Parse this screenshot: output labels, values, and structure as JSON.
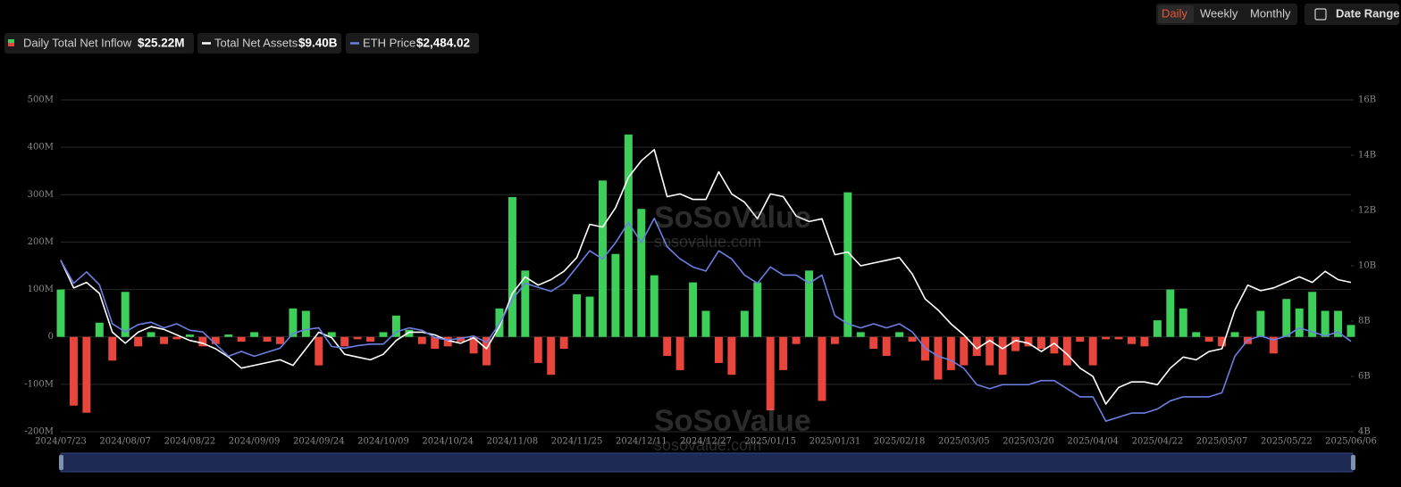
{
  "buttons": {
    "daily": "Daily",
    "weekly": "Weekly",
    "monthly": "Monthly",
    "date_range": "Date Range"
  },
  "watermark": {
    "brand": "SoSoValue",
    "site": "sosovalue.com"
  },
  "chart_data": {
    "type": "combo",
    "categories": [
      "2024/07/23",
      null,
      null,
      null,
      null,
      "2024/08/07",
      null,
      null,
      null,
      null,
      "2024/08/22",
      null,
      null,
      null,
      null,
      "2024/09/09",
      null,
      null,
      null,
      null,
      "2024/09/24",
      null,
      null,
      null,
      null,
      "2024/10/09",
      null,
      null,
      null,
      null,
      "2024/10/24",
      null,
      null,
      null,
      null,
      "2024/11/08",
      null,
      null,
      null,
      null,
      "2024/11/25",
      null,
      null,
      null,
      null,
      "2024/12/11",
      null,
      null,
      null,
      null,
      "2024/12/27",
      null,
      null,
      null,
      null,
      "2025/01/15",
      null,
      null,
      null,
      null,
      "2025/01/31",
      null,
      null,
      null,
      null,
      "2025/02/18",
      null,
      null,
      null,
      null,
      "2025/03/05",
      null,
      null,
      null,
      null,
      "2025/03/20",
      null,
      null,
      null,
      null,
      "2025/04/04",
      null,
      null,
      null,
      null,
      "2025/04/22",
      null,
      null,
      null,
      null,
      "2025/05/07",
      null,
      null,
      null,
      null,
      "2025/05/22",
      null,
      null,
      null,
      null,
      "2025/06/06"
    ],
    "series": [
      {
        "name": "Daily Total Net Inflow",
        "latest": "$25.22M",
        "type": "bar",
        "axis": "y",
        "color": "#3ecf5a",
        "negative_color": "#e8453c",
        "values": [
          100,
          -145,
          -160,
          30,
          -50,
          95,
          -20,
          10,
          -15,
          -5,
          5,
          -20,
          -15,
          5,
          -10,
          10,
          -10,
          -15,
          60,
          55,
          -60,
          10,
          -20,
          -5,
          -10,
          10,
          45,
          15,
          -15,
          -25,
          -20,
          -10,
          -35,
          -60,
          60,
          295,
          140,
          -55,
          -80,
          -25,
          90,
          85,
          330,
          175,
          427,
          270,
          130,
          -40,
          -70,
          115,
          55,
          -55,
          -80,
          55,
          115,
          -155,
          -70,
          -15,
          140,
          -135,
          -15,
          305,
          10,
          -25,
          -40,
          10,
          -10,
          -50,
          -90,
          -70,
          -60,
          -40,
          -60,
          -80,
          -30,
          -20,
          -25,
          -35,
          -60,
          -10,
          -60,
          -5,
          -5,
          -15,
          -20,
          35,
          100,
          60,
          10,
          -10,
          -20,
          10,
          -15,
          55,
          -35,
          80,
          60,
          95,
          55,
          55,
          25.22
        ]
      },
      {
        "name": "Total Net Assets",
        "latest": "$9.40B",
        "type": "line",
        "axis": "y2",
        "color": "#ffffff",
        "values": [
          10.2,
          9.2,
          9.4,
          9.0,
          7.6,
          7.2,
          7.6,
          7.8,
          7.7,
          7.5,
          7.3,
          7.2,
          7.0,
          6.7,
          6.3,
          6.4,
          6.5,
          6.6,
          6.4,
          7.0,
          7.6,
          7.4,
          6.8,
          6.7,
          6.6,
          6.8,
          7.3,
          7.6,
          7.6,
          7.5,
          7.3,
          7.2,
          7.4,
          7.0,
          7.8,
          9.0,
          9.6,
          9.3,
          9.5,
          9.8,
          10.3,
          11.5,
          11.4,
          12.1,
          13.2,
          13.8,
          14.2,
          12.5,
          12.6,
          12.4,
          12.4,
          13.4,
          12.6,
          12.3,
          11.7,
          12.6,
          12.5,
          11.8,
          11.6,
          11.7,
          10.4,
          10.5,
          10.0,
          10.1,
          10.2,
          10.3,
          9.7,
          8.8,
          8.4,
          7.9,
          7.5,
          7.0,
          7.3,
          7.0,
          7.3,
          7.2,
          6.9,
          7.2,
          6.8,
          6.3,
          6.0,
          5.0,
          5.6,
          5.8,
          5.8,
          5.7,
          6.3,
          6.7,
          6.6,
          6.9,
          7.0,
          8.4,
          9.3,
          9.1,
          9.2,
          9.4,
          9.6,
          9.4,
          9.8,
          9.5,
          9.4
        ]
      },
      {
        "name": "ETH Price",
        "latest": "$2,484.02",
        "type": "line",
        "axis": "y3",
        "color": "#6b7fe3",
        "values": [
          3480,
          3200,
          3340,
          3180,
          2700,
          2600,
          2690,
          2720,
          2650,
          2700,
          2620,
          2600,
          2450,
          2300,
          2360,
          2300,
          2350,
          2400,
          2580,
          2630,
          2650,
          2420,
          2400,
          2430,
          2450,
          2450,
          2600,
          2650,
          2620,
          2530,
          2500,
          2520,
          2550,
          2470,
          2700,
          3000,
          3200,
          3150,
          3100,
          3200,
          3400,
          3600,
          3500,
          3700,
          3950,
          3700,
          4000,
          3650,
          3500,
          3400,
          3350,
          3600,
          3500,
          3300,
          3200,
          3400,
          3300,
          3300,
          3200,
          3300,
          2800,
          2700,
          2650,
          2700,
          2650,
          2700,
          2600,
          2400,
          2300,
          2250,
          2150,
          1950,
          1900,
          1950,
          1950,
          1950,
          2000,
          2000,
          1900,
          1800,
          1800,
          1500,
          1550,
          1600,
          1600,
          1650,
          1750,
          1800,
          1800,
          1800,
          1850,
          2300,
          2500,
          2550,
          2500,
          2550,
          2650,
          2600,
          2550,
          2600,
          2484.02
        ]
      }
    ],
    "ylim": [
      -200,
      500
    ],
    "yticks": [
      {
        "value": -200,
        "label": "-200M"
      },
      {
        "value": -100,
        "label": "-100M"
      },
      0,
      {
        "value": 100,
        "label": "100M"
      },
      {
        "value": 200,
        "label": "200M"
      },
      {
        "value": 300,
        "label": "300M"
      },
      {
        "value": 400,
        "label": "400M"
      },
      {
        "value": 500,
        "label": "500M"
      }
    ],
    "y2lim": [
      4,
      16
    ],
    "y2ticks": [
      {
        "value": 4,
        "label": "4B"
      },
      {
        "value": 6,
        "label": "6B"
      },
      {
        "value": 8,
        "label": "8B"
      },
      {
        "value": 10,
        "label": "10B"
      },
      {
        "value": 12,
        "label": "12B"
      },
      {
        "value": 14,
        "label": "14B"
      },
      {
        "value": 16,
        "label": "16B"
      }
    ],
    "y3lim": [
      1370,
      5460
    ],
    "grid": true
  }
}
